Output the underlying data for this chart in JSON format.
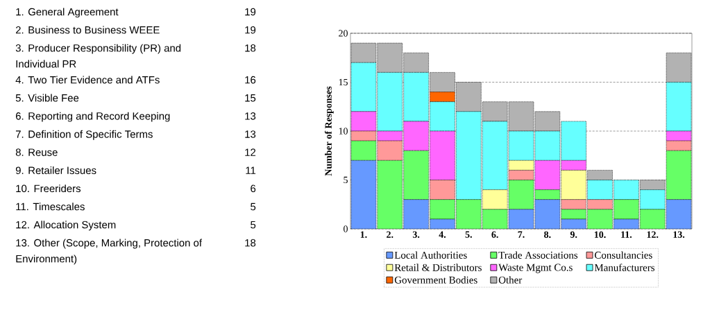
{
  "chart_data": [
    {
      "type": "other",
      "categories": [
        "1. General Agreement",
        "2. Business to Business WEEE",
        "3. Producer Responsibility (PR) and Individual PR",
        "4. Two Tier Evidence and ATFs",
        "5. Visible Fee",
        "6. Reporting and Record Keeping",
        "7. Definition of Specific Terms",
        "8. Reuse",
        "9. Retailer Issues",
        "10. Freeriders",
        "11. Timescales",
        "12. Allocation System",
        "13. Other (Scope, Marking, Protection of Environment)"
      ],
      "value_labels": [
        "19",
        "19",
        "18",
        "16",
        "15",
        "13",
        "13",
        "12",
        "11",
        "6",
        "5",
        "5",
        "18"
      ]
    },
    {
      "type": "bar",
      "stacked": true,
      "ylabel": "Number of Responses",
      "categories": [
        "1.",
        "2.",
        "3.",
        "4.",
        "5.",
        "6.",
        "7.",
        "8.",
        "9.",
        "10.",
        "11.",
        "12.",
        "13."
      ],
      "series": [
        {
          "name": "Local Authorities",
          "color": "#6699ff",
          "values": [
            7,
            0,
            3,
            1,
            0,
            0,
            2,
            3,
            1,
            0,
            1,
            0,
            3
          ]
        },
        {
          "name": "Trade Associations",
          "color": "#66ff66",
          "values": [
            2,
            7,
            5,
            2,
            3,
            2,
            3,
            1,
            1,
            2,
            2,
            2,
            5
          ]
        },
        {
          "name": "Consultancies",
          "color": "#ff9999",
          "values": [
            1,
            2,
            0,
            2,
            0,
            0,
            1,
            0,
            1,
            1,
            0,
            0,
            1
          ]
        },
        {
          "name": "Retail & Distributors",
          "color": "#ffff99",
          "values": [
            0,
            0,
            0,
            0,
            0,
            2,
            1,
            0,
            3,
            0,
            0,
            0,
            0
          ]
        },
        {
          "name": "Waste Mgmt Co.s",
          "color": "#ff66ff",
          "values": [
            2,
            1,
            3,
            5,
            0,
            0,
            0,
            3,
            1,
            0,
            0,
            0,
            1
          ]
        },
        {
          "name": "Manufacturers",
          "color": "#66ffff",
          "values": [
            5,
            6,
            5,
            3,
            9,
            7,
            3,
            3,
            4,
            2,
            2,
            2,
            5
          ]
        },
        {
          "name": "Government Bodies",
          "color": "#ff6600",
          "values": [
            0,
            0,
            0,
            1,
            0,
            0,
            0,
            0,
            0,
            0,
            0,
            0,
            0
          ]
        },
        {
          "name": "Other",
          "color": "#b2b2b2",
          "values": [
            2,
            3,
            2,
            2,
            3,
            2,
            3,
            2,
            0,
            1,
            0,
            1,
            3
          ]
        }
      ],
      "ylim": [
        0,
        20
      ],
      "yticks": [
        0,
        5,
        10,
        15,
        20
      ],
      "grid": "y",
      "legend": "bottom"
    }
  ]
}
